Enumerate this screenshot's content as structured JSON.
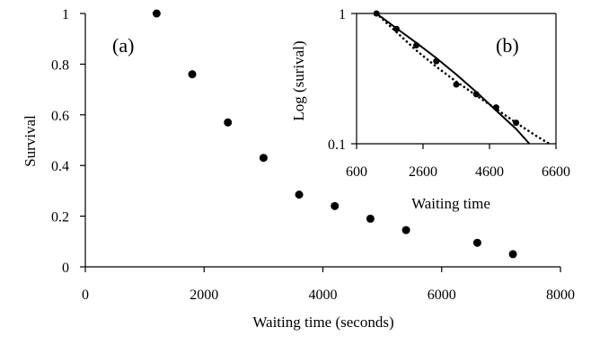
{
  "chart_data": [
    {
      "panel": "(a)",
      "type": "scatter",
      "xlabel": "Waiting time (seconds)",
      "ylabel": "Survival",
      "xlim": [
        0,
        8000
      ],
      "ylim": [
        0,
        1
      ],
      "xticks": [
        0,
        2000,
        4000,
        6000,
        8000
      ],
      "yticks": [
        0,
        0.2,
        0.4,
        0.6,
        0.8,
        1
      ],
      "ytick_labels": [
        "0",
        "0.2",
        "0.4",
        "0.6",
        "0.8",
        "1"
      ],
      "grid": false,
      "series": [
        {
          "x": [
            1200,
            1800,
            2400,
            3000,
            3600,
            4200,
            4800,
            5400,
            6600,
            7200
          ],
          "y": [
            1.0,
            0.76,
            0.57,
            0.43,
            0.285,
            0.24,
            0.19,
            0.145,
            0.095,
            0.05
          ]
        }
      ]
    },
    {
      "panel": "(b)",
      "type": "line",
      "xlabel": "Waiting time",
      "ylabel": "Log (surival)",
      "xlim": [
        600,
        6600
      ],
      "ylim": [
        0.1,
        1
      ],
      "yscale": "log",
      "xticks": [
        600,
        2600,
        4600,
        6600
      ],
      "yticks": [
        0.1,
        1
      ],
      "ytick_labels": [
        "0.1",
        "1"
      ],
      "grid": false,
      "points": {
        "x": [
          1200,
          1800,
          2400,
          3000,
          3600,
          4200,
          4800,
          5400
        ],
        "y": [
          1.0,
          0.76,
          0.57,
          0.43,
          0.285,
          0.24,
          0.19,
          0.145
        ]
      },
      "solid_curve": {
        "x": [
          1200,
          1800,
          2400,
          3000,
          3600,
          4200,
          4800,
          5400,
          5800
        ],
        "y": [
          1.0,
          0.77,
          0.595,
          0.455,
          0.34,
          0.25,
          0.18,
          0.13,
          0.1
        ]
      },
      "dotted_curve": {
        "x": [
          1200,
          1800,
          2400,
          3000,
          3600,
          4200,
          4800,
          5400,
          6000,
          6400
        ],
        "y": [
          1.05,
          0.72,
          0.52,
          0.39,
          0.3,
          0.235,
          0.185,
          0.145,
          0.115,
          0.1
        ]
      }
    }
  ]
}
